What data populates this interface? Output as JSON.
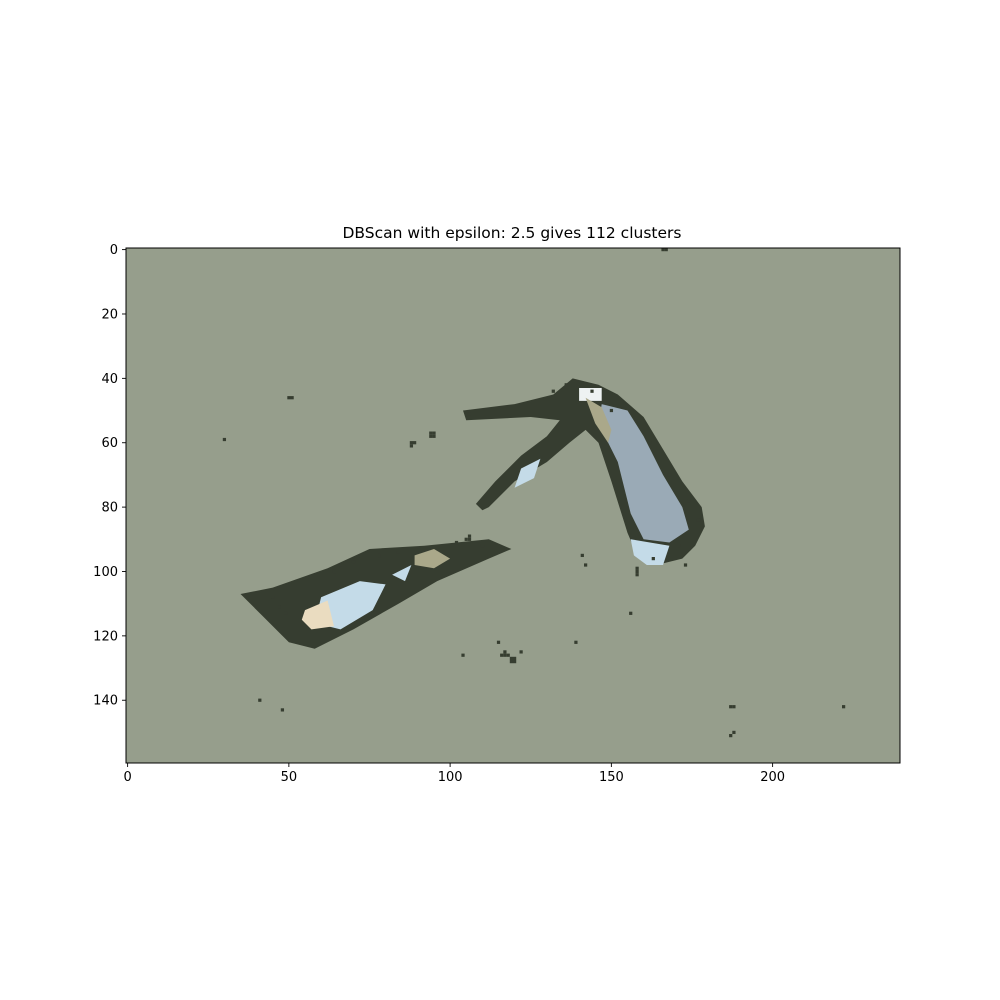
{
  "chart_data": {
    "type": "heatmap",
    "title": "DBScan with epsilon: 2.5 gives 112 clusters",
    "xlabel": "",
    "ylabel": "",
    "image_size": {
      "width": 240,
      "height": 160
    },
    "xlim": [
      -0.5,
      239.5
    ],
    "ylim": [
      159.5,
      -0.5
    ],
    "x_ticks": [
      0,
      50,
      100,
      150,
      200
    ],
    "y_ticks": [
      0,
      20,
      40,
      60,
      80,
      100,
      120,
      140
    ],
    "grid": false,
    "legend": "none",
    "colors": {
      "background_cluster": "#969e8c",
      "dark_cluster": "#363d30",
      "light_blue_cluster": "#9aaab6",
      "pale_blue_cluster": "#c4dbe8",
      "cream_cluster": "#eadcc0",
      "khaki_cluster": "#aaa88a",
      "white_cluster": "#eef2f2"
    },
    "regions": [
      {
        "cluster": "dark_cluster",
        "points": [
          [
            35,
            107
          ],
          [
            45,
            105
          ],
          [
            62,
            99
          ],
          [
            75,
            93
          ],
          [
            92,
            92
          ],
          [
            112,
            90
          ],
          [
            119,
            93
          ],
          [
            112,
            96
          ],
          [
            96,
            103
          ],
          [
            84,
            110
          ],
          [
            70,
            118
          ],
          [
            58,
            124
          ],
          [
            50,
            122
          ],
          [
            42,
            114
          ]
        ]
      },
      {
        "cluster": "dark_cluster",
        "points": [
          [
            104,
            50
          ],
          [
            120,
            48
          ],
          [
            132,
            45
          ],
          [
            138,
            40
          ],
          [
            146,
            42
          ],
          [
            152,
            45
          ],
          [
            160,
            52
          ],
          [
            166,
            62
          ],
          [
            172,
            72
          ],
          [
            178,
            80
          ],
          [
            179,
            86
          ],
          [
            176,
            92
          ],
          [
            172,
            96
          ],
          [
            164,
            98
          ],
          [
            158,
            95
          ],
          [
            155,
            88
          ],
          [
            150,
            72
          ],
          [
            146,
            60
          ],
          [
            142,
            56
          ],
          [
            137,
            60
          ],
          [
            130,
            66
          ],
          [
            120,
            72
          ],
          [
            112,
            80
          ],
          [
            110,
            81
          ],
          [
            108,
            79
          ],
          [
            114,
            72
          ],
          [
            122,
            64
          ],
          [
            130,
            58
          ],
          [
            134,
            53
          ],
          [
            125,
            52
          ],
          [
            105,
            53
          ]
        ]
      },
      {
        "cluster": "light_blue_cluster",
        "points": [
          [
            147,
            48
          ],
          [
            155,
            50
          ],
          [
            160,
            58
          ],
          [
            166,
            70
          ],
          [
            172,
            80
          ],
          [
            174,
            87
          ],
          [
            168,
            91
          ],
          [
            160,
            90
          ],
          [
            156,
            82
          ],
          [
            152,
            66
          ],
          [
            146,
            54
          ]
        ]
      },
      {
        "cluster": "pale_blue_cluster",
        "points": [
          [
            60,
            108
          ],
          [
            72,
            103
          ],
          [
            80,
            104
          ],
          [
            76,
            112
          ],
          [
            66,
            118
          ],
          [
            58,
            116
          ]
        ]
      },
      {
        "cluster": "cream_cluster",
        "points": [
          [
            55,
            112
          ],
          [
            62,
            109
          ],
          [
            64,
            117
          ],
          [
            57,
            118
          ],
          [
            54,
            115
          ]
        ]
      },
      {
        "cluster": "white_cluster",
        "points": [
          [
            140,
            43
          ],
          [
            147,
            43
          ],
          [
            147,
            47
          ],
          [
            140,
            47
          ]
        ]
      },
      {
        "cluster": "pale_blue_cluster",
        "points": [
          [
            156,
            90
          ],
          [
            168,
            92
          ],
          [
            166,
            98
          ],
          [
            161,
            98
          ],
          [
            157,
            95
          ]
        ]
      },
      {
        "cluster": "khaki_cluster",
        "points": [
          [
            89,
            95
          ],
          [
            95,
            93
          ],
          [
            100,
            96
          ],
          [
            95,
            99
          ],
          [
            89,
            98
          ]
        ]
      },
      {
        "cluster": "pale_blue_cluster",
        "points": [
          [
            122,
            68
          ],
          [
            128,
            65
          ],
          [
            126,
            71
          ],
          [
            120,
            74
          ]
        ]
      },
      {
        "cluster": "khaki_cluster",
        "points": [
          [
            142,
            46
          ],
          [
            147,
            49
          ],
          [
            150,
            56
          ],
          [
            149,
            60
          ],
          [
            145,
            54
          ]
        ]
      },
      {
        "cluster": "pale_blue_cluster",
        "points": [
          [
            82,
            101
          ],
          [
            88,
            98
          ],
          [
            86,
            103
          ]
        ]
      }
    ],
    "pixels": [
      [
        166,
        0
      ],
      [
        167,
        0
      ],
      [
        50,
        46
      ],
      [
        51,
        46
      ],
      [
        30,
        59
      ],
      [
        88,
        60
      ],
      [
        89,
        60
      ],
      [
        88,
        61
      ],
      [
        94,
        57
      ],
      [
        94,
        58
      ],
      [
        95,
        57
      ],
      [
        95,
        58
      ],
      [
        45,
        108
      ],
      [
        47,
        111
      ],
      [
        49,
        113
      ],
      [
        64,
        100
      ],
      [
        66,
        98
      ],
      [
        70,
        97
      ],
      [
        78,
        95
      ],
      [
        84,
        94
      ],
      [
        102,
        91
      ],
      [
        105,
        90
      ],
      [
        110,
        92
      ],
      [
        132,
        44
      ],
      [
        136,
        42
      ],
      [
        144,
        44
      ],
      [
        150,
        50
      ],
      [
        162,
        60
      ],
      [
        168,
        70
      ],
      [
        174,
        78
      ],
      [
        177,
        84
      ],
      [
        171,
        92
      ],
      [
        163,
        96
      ],
      [
        106,
        89
      ],
      [
        106,
        90
      ],
      [
        141,
        95
      ],
      [
        142,
        98
      ],
      [
        139,
        122
      ],
      [
        156,
        113
      ],
      [
        115,
        122
      ],
      [
        117,
        125
      ],
      [
        116,
        126
      ],
      [
        117,
        126
      ],
      [
        118,
        126
      ],
      [
        119,
        127
      ],
      [
        120,
        127
      ],
      [
        119,
        128
      ],
      [
        120,
        128
      ],
      [
        122,
        125
      ],
      [
        104,
        126
      ],
      [
        41,
        140
      ],
      [
        48,
        143
      ],
      [
        188,
        142
      ],
      [
        187,
        142
      ],
      [
        187,
        151
      ],
      [
        188,
        150
      ],
      [
        222,
        142
      ],
      [
        158,
        99
      ],
      [
        158,
        100
      ],
      [
        158,
        101
      ],
      [
        173,
        98
      ],
      [
        106,
        51
      ]
    ]
  }
}
